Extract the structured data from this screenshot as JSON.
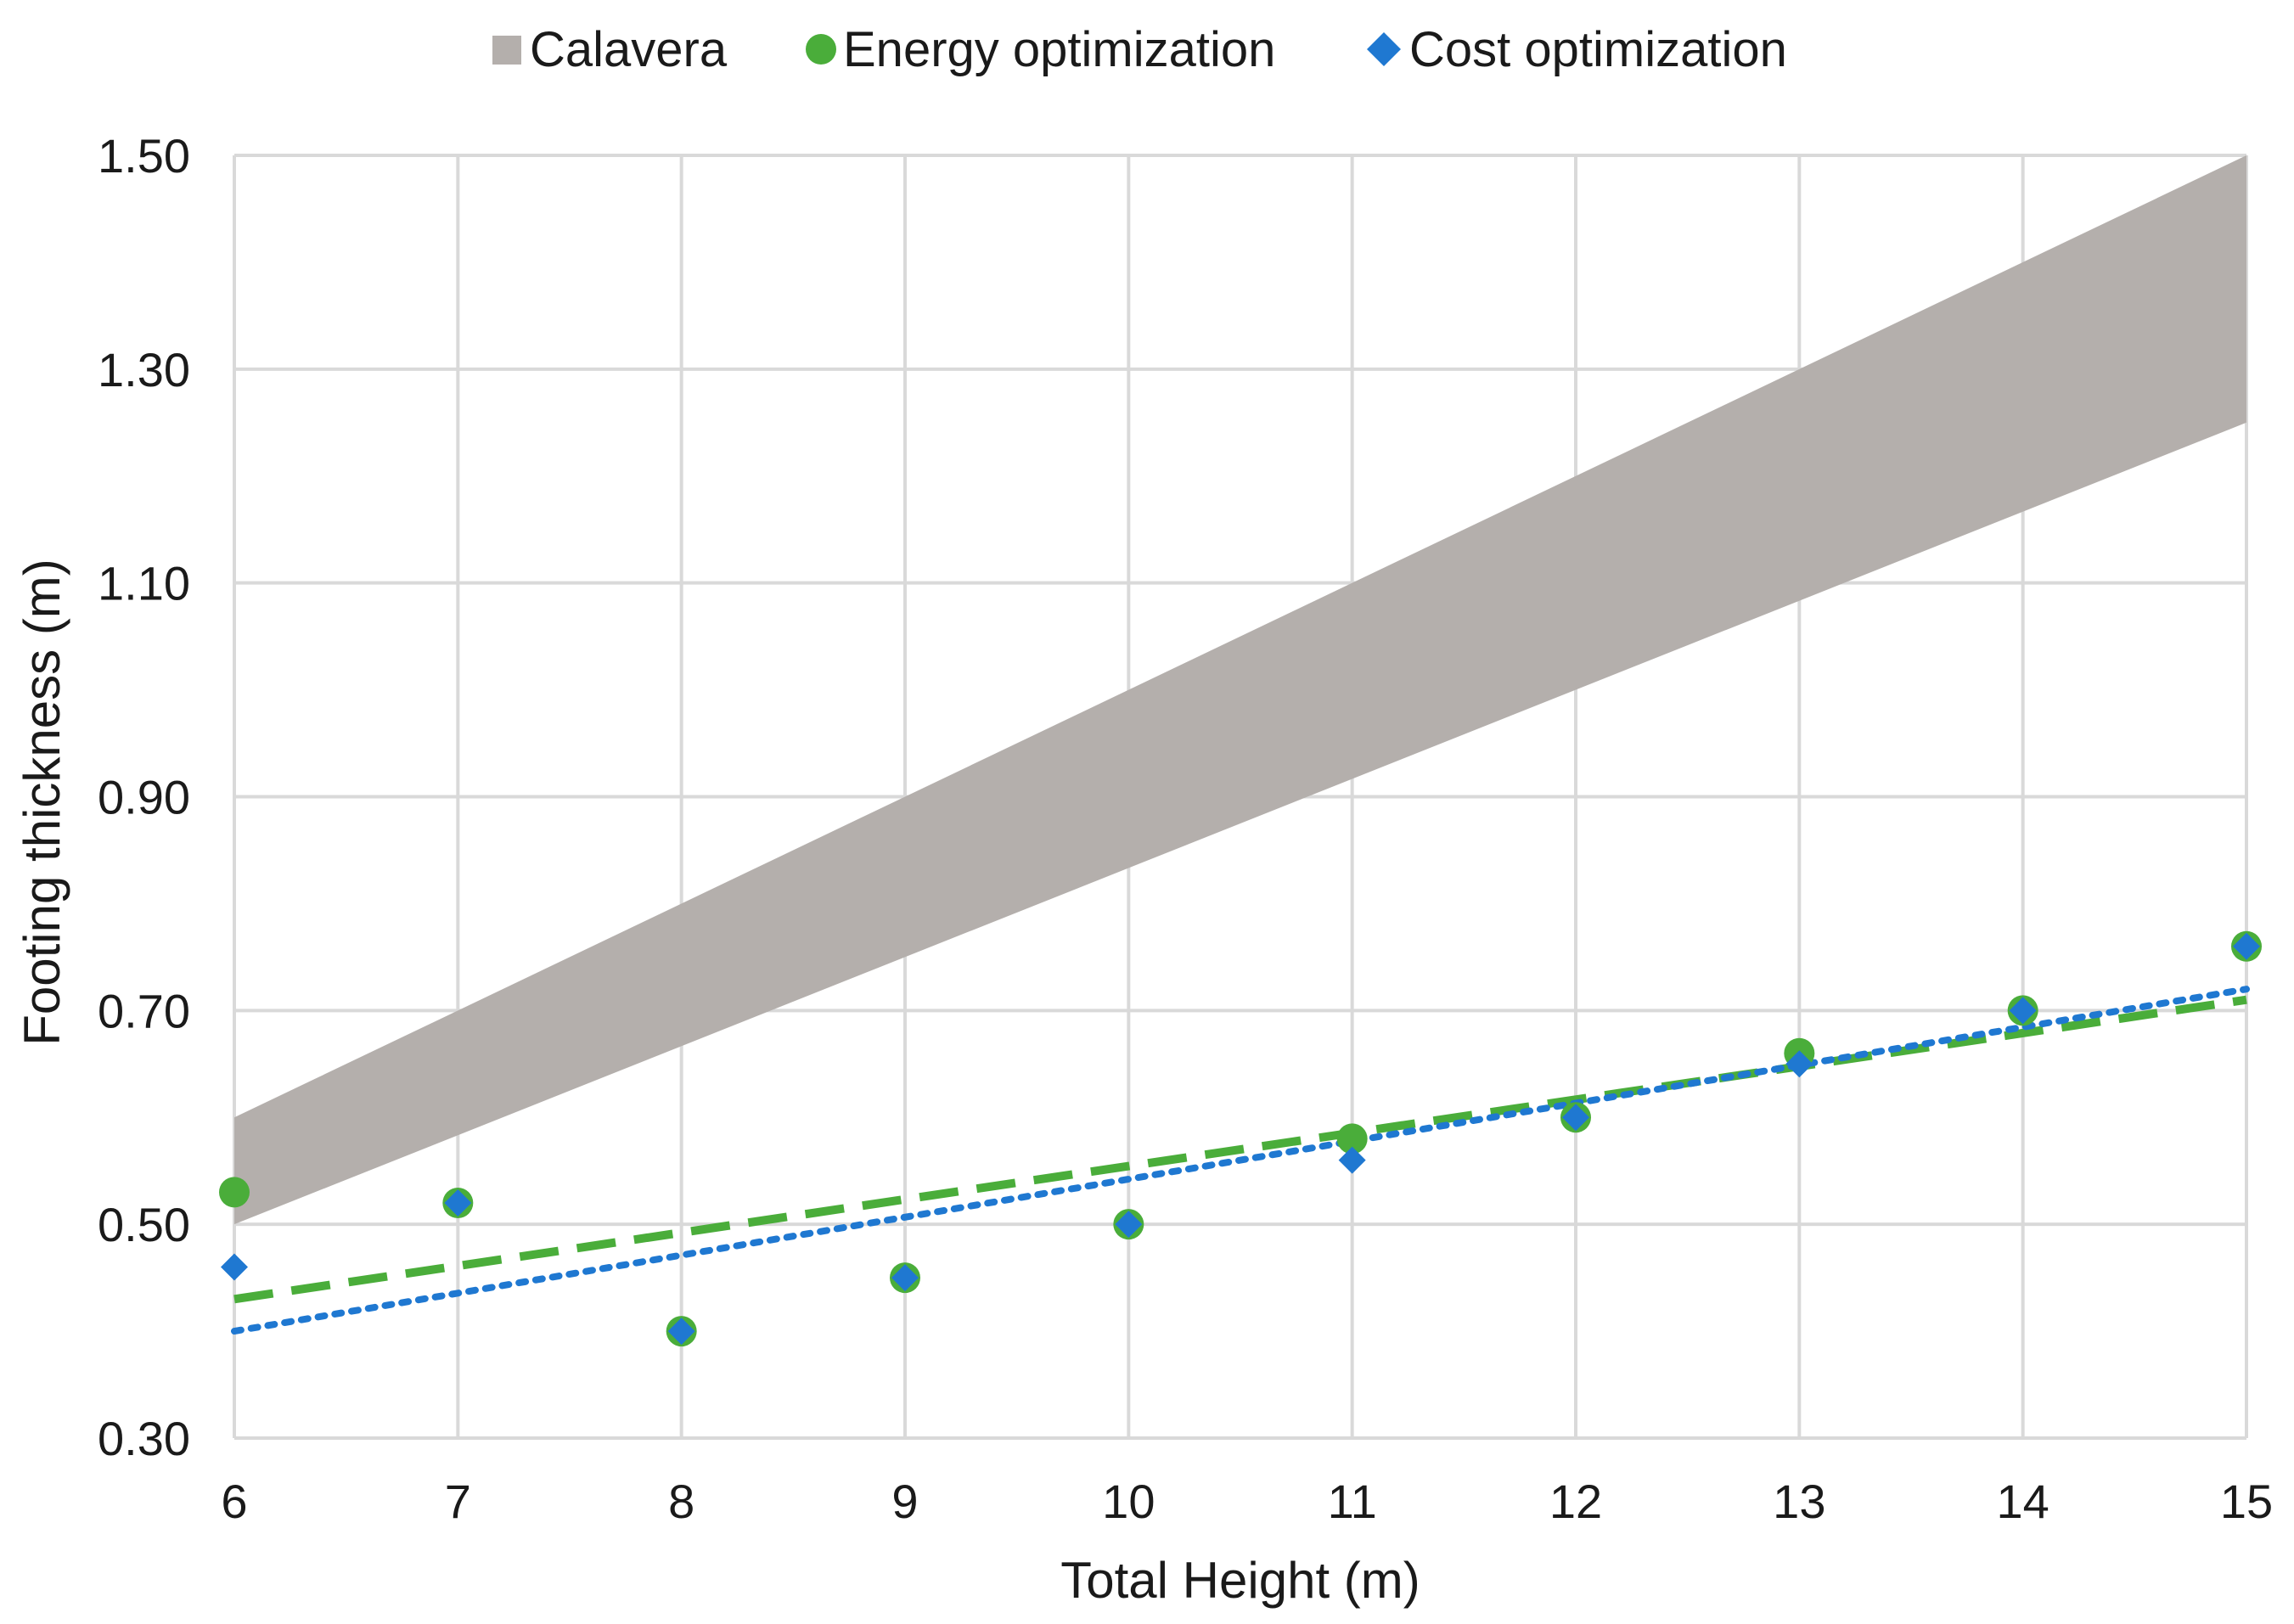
{
  "chart_data": {
    "type": "scatter",
    "title": "",
    "xlabel": "Total Height (m)",
    "ylabel": "Footing thickness (m)",
    "xlim": [
      6,
      15
    ],
    "ylim": [
      0.3,
      1.5
    ],
    "x_ticks": [
      "6",
      "7",
      "8",
      "9",
      "10",
      "11",
      "12",
      "13",
      "14",
      "15"
    ],
    "y_ticks": [
      "0.30",
      "0.50",
      "0.70",
      "0.90",
      "1.10",
      "1.30",
      "1.50"
    ],
    "grid": true,
    "legend_position": "top-center",
    "colors": {
      "calavera": "#b4afac",
      "energy": "#4aad3a",
      "cost": "#1f78d1",
      "grid": "#d9d9d9",
      "text": "#1a1a1a"
    },
    "series": [
      {
        "name": "Calavera",
        "kind": "band",
        "x": [
          6,
          15
        ],
        "lower": [
          0.5,
          1.25
        ],
        "upper": [
          0.6,
          1.5
        ]
      },
      {
        "name": "Energy optimization",
        "kind": "scatter",
        "marker": "circle",
        "x": [
          6,
          7,
          8,
          9,
          10,
          11,
          12,
          13,
          14,
          15
        ],
        "y": [
          0.53,
          0.52,
          0.4,
          0.45,
          0.5,
          0.58,
          0.6,
          0.66,
          0.7,
          0.76
        ],
        "trendline": {
          "style": "dashed",
          "x": [
            6,
            15
          ],
          "y": [
            0.43,
            0.71
          ]
        }
      },
      {
        "name": "Cost optimization",
        "kind": "scatter",
        "marker": "diamond",
        "x": [
          6,
          7,
          8,
          9,
          10,
          11,
          12,
          13,
          14,
          15
        ],
        "y": [
          0.46,
          0.52,
          0.4,
          0.45,
          0.5,
          0.56,
          0.6,
          0.65,
          0.7,
          0.76
        ],
        "trendline": {
          "style": "dotted",
          "x": [
            6,
            15
          ],
          "y": [
            0.4,
            0.72
          ]
        }
      }
    ]
  }
}
